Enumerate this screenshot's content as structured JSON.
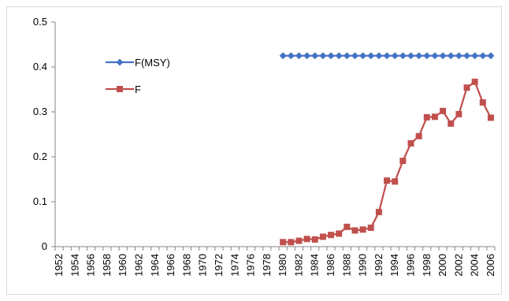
{
  "chart_data": {
    "type": "line",
    "title": "",
    "xlabel": "",
    "ylabel": "",
    "grid": false,
    "legend_position": "upper-left",
    "ylim": [
      0,
      0.5
    ],
    "y_ticks": [
      "0",
      "0.1",
      "0.2",
      "0.3",
      "0.4",
      "0.5"
    ],
    "x": [
      1952,
      1953,
      1954,
      1955,
      1956,
      1957,
      1958,
      1959,
      1960,
      1961,
      1962,
      1963,
      1964,
      1965,
      1966,
      1967,
      1968,
      1969,
      1970,
      1971,
      1972,
      1973,
      1974,
      1975,
      1976,
      1977,
      1978,
      1979,
      1980,
      1981,
      1982,
      1983,
      1984,
      1985,
      1986,
      1987,
      1988,
      1989,
      1990,
      1991,
      1992,
      1993,
      1994,
      1995,
      1996,
      1997,
      1998,
      1999,
      2000,
      2001,
      2002,
      2003,
      2004,
      2005,
      2006
    ],
    "x_tick_labels": [
      "1952",
      "1954",
      "1956",
      "1958",
      "1960",
      "1962",
      "1964",
      "1966",
      "1968",
      "1970",
      "1972",
      "1974",
      "1976",
      "1978",
      "1980",
      "1982",
      "1984",
      "1986",
      "1988",
      "1990",
      "1992",
      "1994",
      "1996",
      "1998",
      "2000",
      "2002",
      "2004",
      "2006"
    ],
    "series": [
      {
        "name": "F(MSY)",
        "color": "#4472C4",
        "marker": "diamond",
        "values": [
          null,
          null,
          null,
          null,
          null,
          null,
          null,
          null,
          null,
          null,
          null,
          null,
          null,
          null,
          null,
          null,
          null,
          null,
          null,
          null,
          null,
          null,
          null,
          null,
          null,
          null,
          null,
          null,
          0.425,
          0.425,
          0.425,
          0.425,
          0.425,
          0.425,
          0.425,
          0.425,
          0.425,
          0.425,
          0.425,
          0.425,
          0.425,
          0.425,
          0.425,
          0.425,
          0.425,
          0.425,
          0.425,
          0.425,
          0.425,
          0.425,
          0.425,
          0.425,
          0.425,
          0.425,
          0.425
        ]
      },
      {
        "name": "F",
        "color": "#C0504D",
        "marker": "square",
        "values": [
          null,
          null,
          null,
          null,
          null,
          null,
          null,
          null,
          null,
          null,
          null,
          null,
          null,
          null,
          null,
          null,
          null,
          null,
          null,
          null,
          null,
          null,
          null,
          null,
          null,
          null,
          null,
          null,
          0.01,
          0.01,
          0.013,
          0.017,
          0.016,
          0.022,
          0.026,
          0.029,
          0.044,
          0.036,
          0.038,
          0.042,
          0.077,
          0.147,
          0.145,
          0.191,
          0.23,
          0.246,
          0.288,
          0.289,
          0.302,
          0.274,
          0.295,
          0.354,
          0.367,
          0.321,
          0.287
        ]
      }
    ]
  }
}
